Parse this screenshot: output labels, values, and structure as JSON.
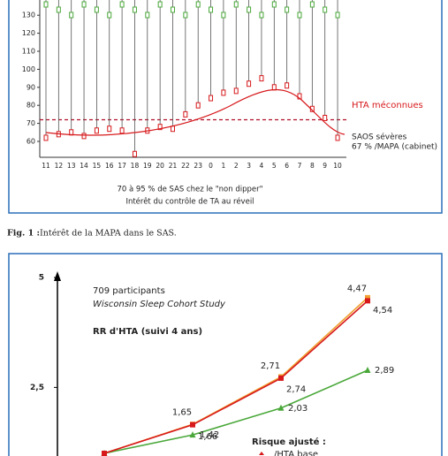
{
  "figure1": {
    "yticks": [
      60,
      70,
      80,
      90,
      100,
      110,
      120,
      130
    ],
    "hours": [
      "11",
      "12",
      "13",
      "14",
      "15",
      "16",
      "17",
      "18",
      "19",
      "20",
      "21",
      "22",
      "23",
      "0",
      "1",
      "2",
      "3",
      "4",
      "5",
      "6",
      "7",
      "8",
      "9",
      "10"
    ],
    "diastolic": [
      62,
      64,
      65,
      63,
      66,
      67,
      66,
      53,
      66,
      68,
      67,
      75,
      80,
      84,
      87,
      88,
      92,
      95,
      90,
      91,
      85,
      78,
      73,
      62
    ],
    "threshold": 72,
    "label_hta": "HTA méconnues",
    "label_saos": "SAOS sévères",
    "label_mapa": "67 % /MAPA (cabinet)",
    "note1": "70 à  95 % de SAS chez le \"non dipper\"",
    "note2": "Intérêt du contrôle de TA au réveil"
  },
  "caption": {
    "label": "Fig. 1 :",
    "text": "Intérêt de la MAPA dans le SAS."
  },
  "figure2": {
    "ylim": [
      1,
      5
    ],
    "yticks": [
      {
        "value": 2.5,
        "label": "2,5"
      },
      5
    ],
    "title1": "709 participants",
    "title2": "Wisconsin Sleep Cohort Study",
    "title3": "RR d'HTA (suivi 4 ans)",
    "legend_title": "Risque ajusté :",
    "series": [
      {
        "name": "/HTA base",
        "color": "#d7191c",
        "values": [
          1,
          1.65,
          2.71,
          4.47
        ],
        "value_labels": [
          null,
          "1,65",
          "2,71",
          "4,47"
        ]
      },
      {
        "color": "#f0a030",
        "values": [
          1,
          1.66,
          2.74,
          4.54
        ],
        "value_labels": [
          null,
          "1,66",
          "2,74",
          "4,54"
        ]
      },
      {
        "color": "#4aa83a",
        "values": [
          1,
          1.42,
          2.03,
          2.89
        ],
        "value_labels": [
          null,
          "1,42",
          "2,03",
          "2,89"
        ]
      }
    ]
  }
}
